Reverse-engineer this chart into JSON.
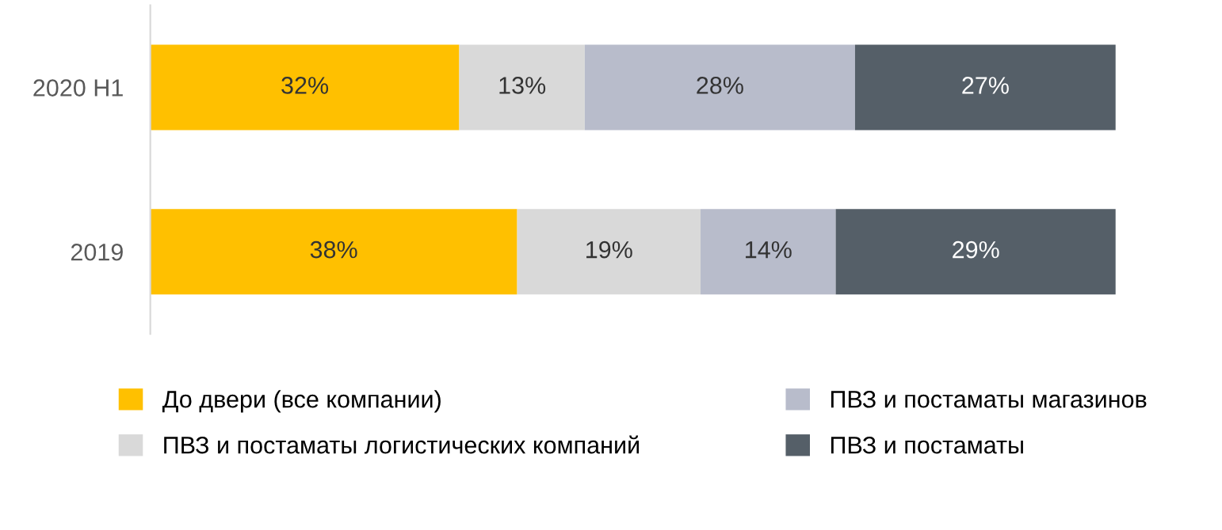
{
  "chart_data": {
    "type": "bar",
    "orientation": "horizontal",
    "stacked": true,
    "categories": [
      "2020 H1",
      "2019"
    ],
    "xlim": [
      0,
      100
    ],
    "tick_labels": "y",
    "legend": "bottom",
    "grid": false,
    "series": [
      {
        "name": "До двери (все компании)",
        "color": "#ffc000",
        "values": [
          32,
          38
        ],
        "value_labels": [
          "32%",
          "38%"
        ]
      },
      {
        "name": "ПВЗ и постаматы логистических компаний",
        "color": "#d9d9d9",
        "values": [
          13,
          19
        ],
        "value_labels": [
          "13%",
          "19%"
        ]
      },
      {
        "name": "ПВЗ и постаматы магазинов",
        "color": "#b8bccb",
        "values": [
          28,
          14
        ],
        "value_labels": [
          "28%",
          "14%"
        ]
      },
      {
        "name": "ПВЗ и постаматы",
        "color": "#555f68",
        "values": [
          27,
          29
        ],
        "value_labels": [
          "27%",
          "29%"
        ]
      }
    ]
  }
}
